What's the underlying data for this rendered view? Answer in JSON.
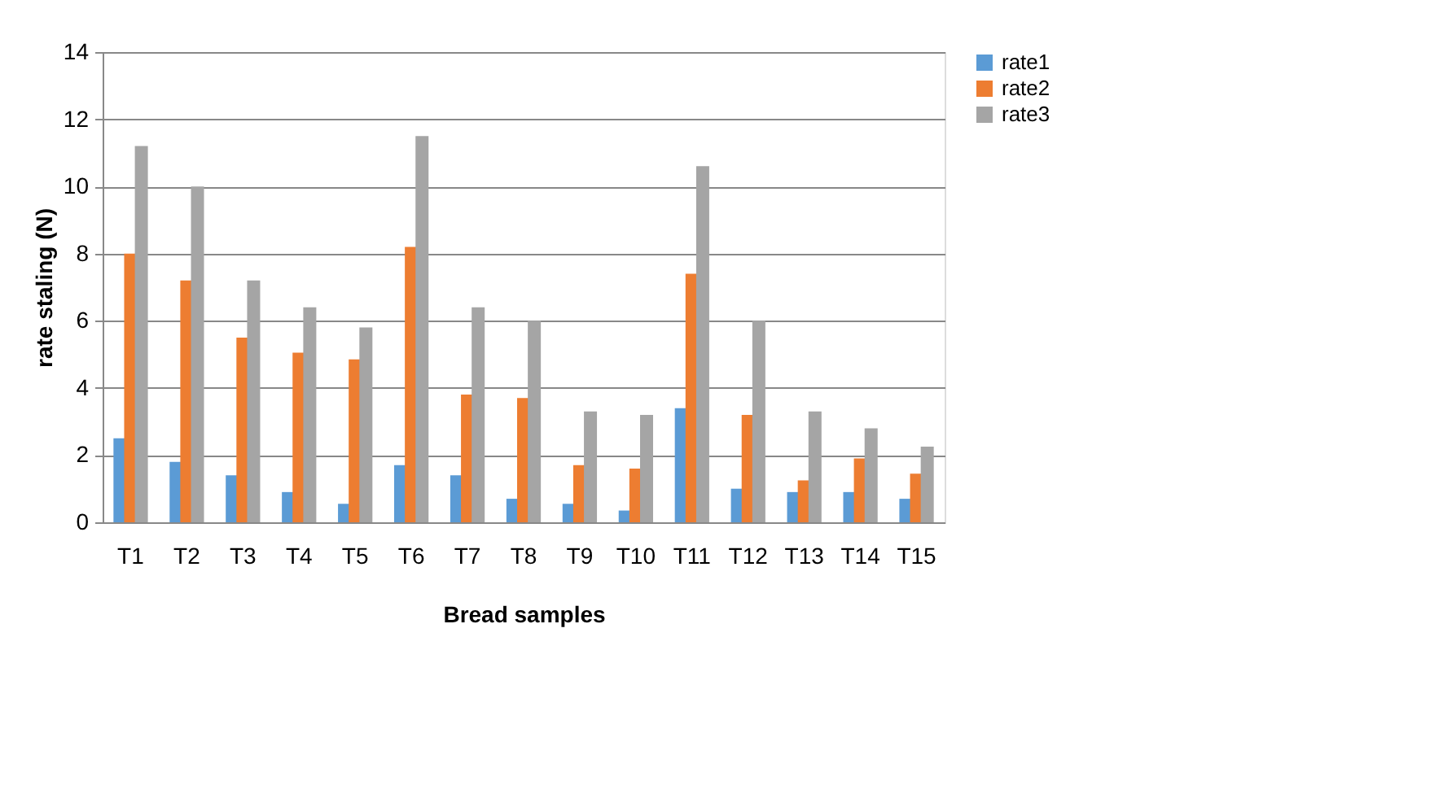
{
  "chart_data": {
    "type": "bar",
    "xlabel": "Bread samples",
    "ylabel": "rate staling (N)",
    "categories": [
      "T1",
      "T2",
      "T3",
      "T4",
      "T5",
      "T6",
      "T7",
      "T8",
      "T9",
      "T10",
      "T11",
      "T12",
      "T13",
      "T14",
      "T15"
    ],
    "series": [
      {
        "name": "rate1",
        "color": "#5b9bd5",
        "values": [
          2.5,
          1.8,
          1.4,
          0.9,
          0.55,
          1.7,
          1.4,
          0.7,
          0.55,
          0.35,
          3.4,
          1.0,
          0.9,
          0.9,
          0.7
        ]
      },
      {
        "name": "rate2",
        "color": "#ed7d31",
        "values": [
          8.0,
          7.2,
          5.5,
          5.05,
          4.85,
          8.2,
          3.8,
          3.7,
          1.7,
          1.6,
          7.4,
          3.2,
          1.25,
          1.9,
          1.45
        ]
      },
      {
        "name": "rate3",
        "color": "#a5a5a5",
        "values": [
          11.2,
          10.0,
          7.2,
          6.4,
          5.8,
          11.5,
          6.4,
          6.0,
          3.3,
          3.2,
          10.6,
          6.0,
          3.3,
          2.8,
          2.25
        ]
      }
    ],
    "ylim": [
      0,
      14
    ],
    "yticks": [
      0,
      2,
      4,
      6,
      8,
      10,
      12,
      14
    ],
    "grid": "y",
    "legend": "right"
  }
}
